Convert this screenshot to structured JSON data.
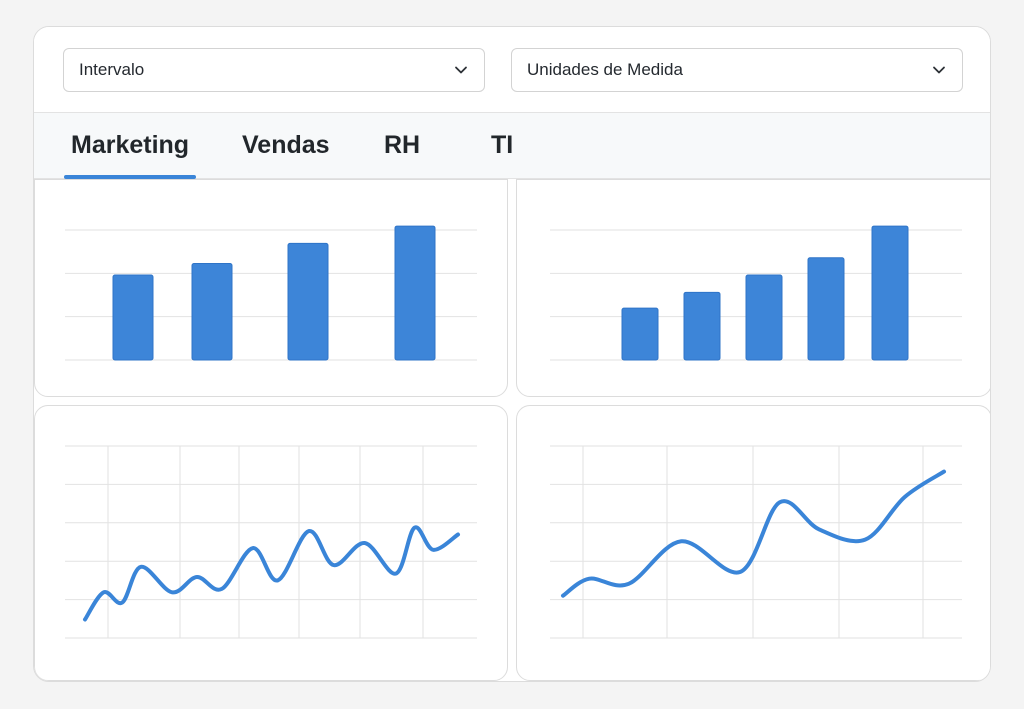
{
  "filters": {
    "interval_label": "Intervalo",
    "units_label": "Unidades de Medida"
  },
  "tabs": [
    {
      "label": "Marketing",
      "active": true
    },
    {
      "label": "Vendas",
      "active": false
    },
    {
      "label": "RH",
      "active": false
    },
    {
      "label": "TI",
      "active": false
    }
  ],
  "colors": {
    "accent": "#3a85d8",
    "bar_fill": "#3d85d8",
    "grid": "#e2e2e2"
  },
  "icons": {
    "dropdown": "chevron-down-icon"
  },
  "chart_data": [
    {
      "type": "bar",
      "categories": [
        "",
        "",
        "",
        ""
      ],
      "values": [
        59,
        67,
        81,
        93
      ],
      "ylim": [
        0,
        100
      ],
      "grid": true
    },
    {
      "type": "bar",
      "categories": [
        "",
        "",
        "",
        "",
        ""
      ],
      "values": [
        36,
        47,
        59,
        71,
        93
      ],
      "ylim": [
        0,
        100
      ],
      "grid": true
    },
    {
      "type": "line",
      "x": [
        0,
        3,
        6,
        9,
        14,
        18,
        22,
        27,
        31,
        36,
        40,
        45,
        50,
        53,
        56,
        60
      ],
      "values": [
        5,
        21,
        15,
        36,
        21,
        30,
        23,
        47,
        28,
        57,
        37,
        50,
        32,
        59,
        46,
        55
      ],
      "ylim": [
        0,
        100
      ],
      "grid": true
    },
    {
      "type": "line",
      "x": [
        0,
        4,
        10,
        18,
        27,
        33,
        39,
        46,
        52,
        58
      ],
      "values": [
        19,
        29,
        26,
        51,
        33,
        74,
        58,
        52,
        77,
        92
      ],
      "ylim": [
        0,
        100
      ],
      "grid": true
    }
  ]
}
